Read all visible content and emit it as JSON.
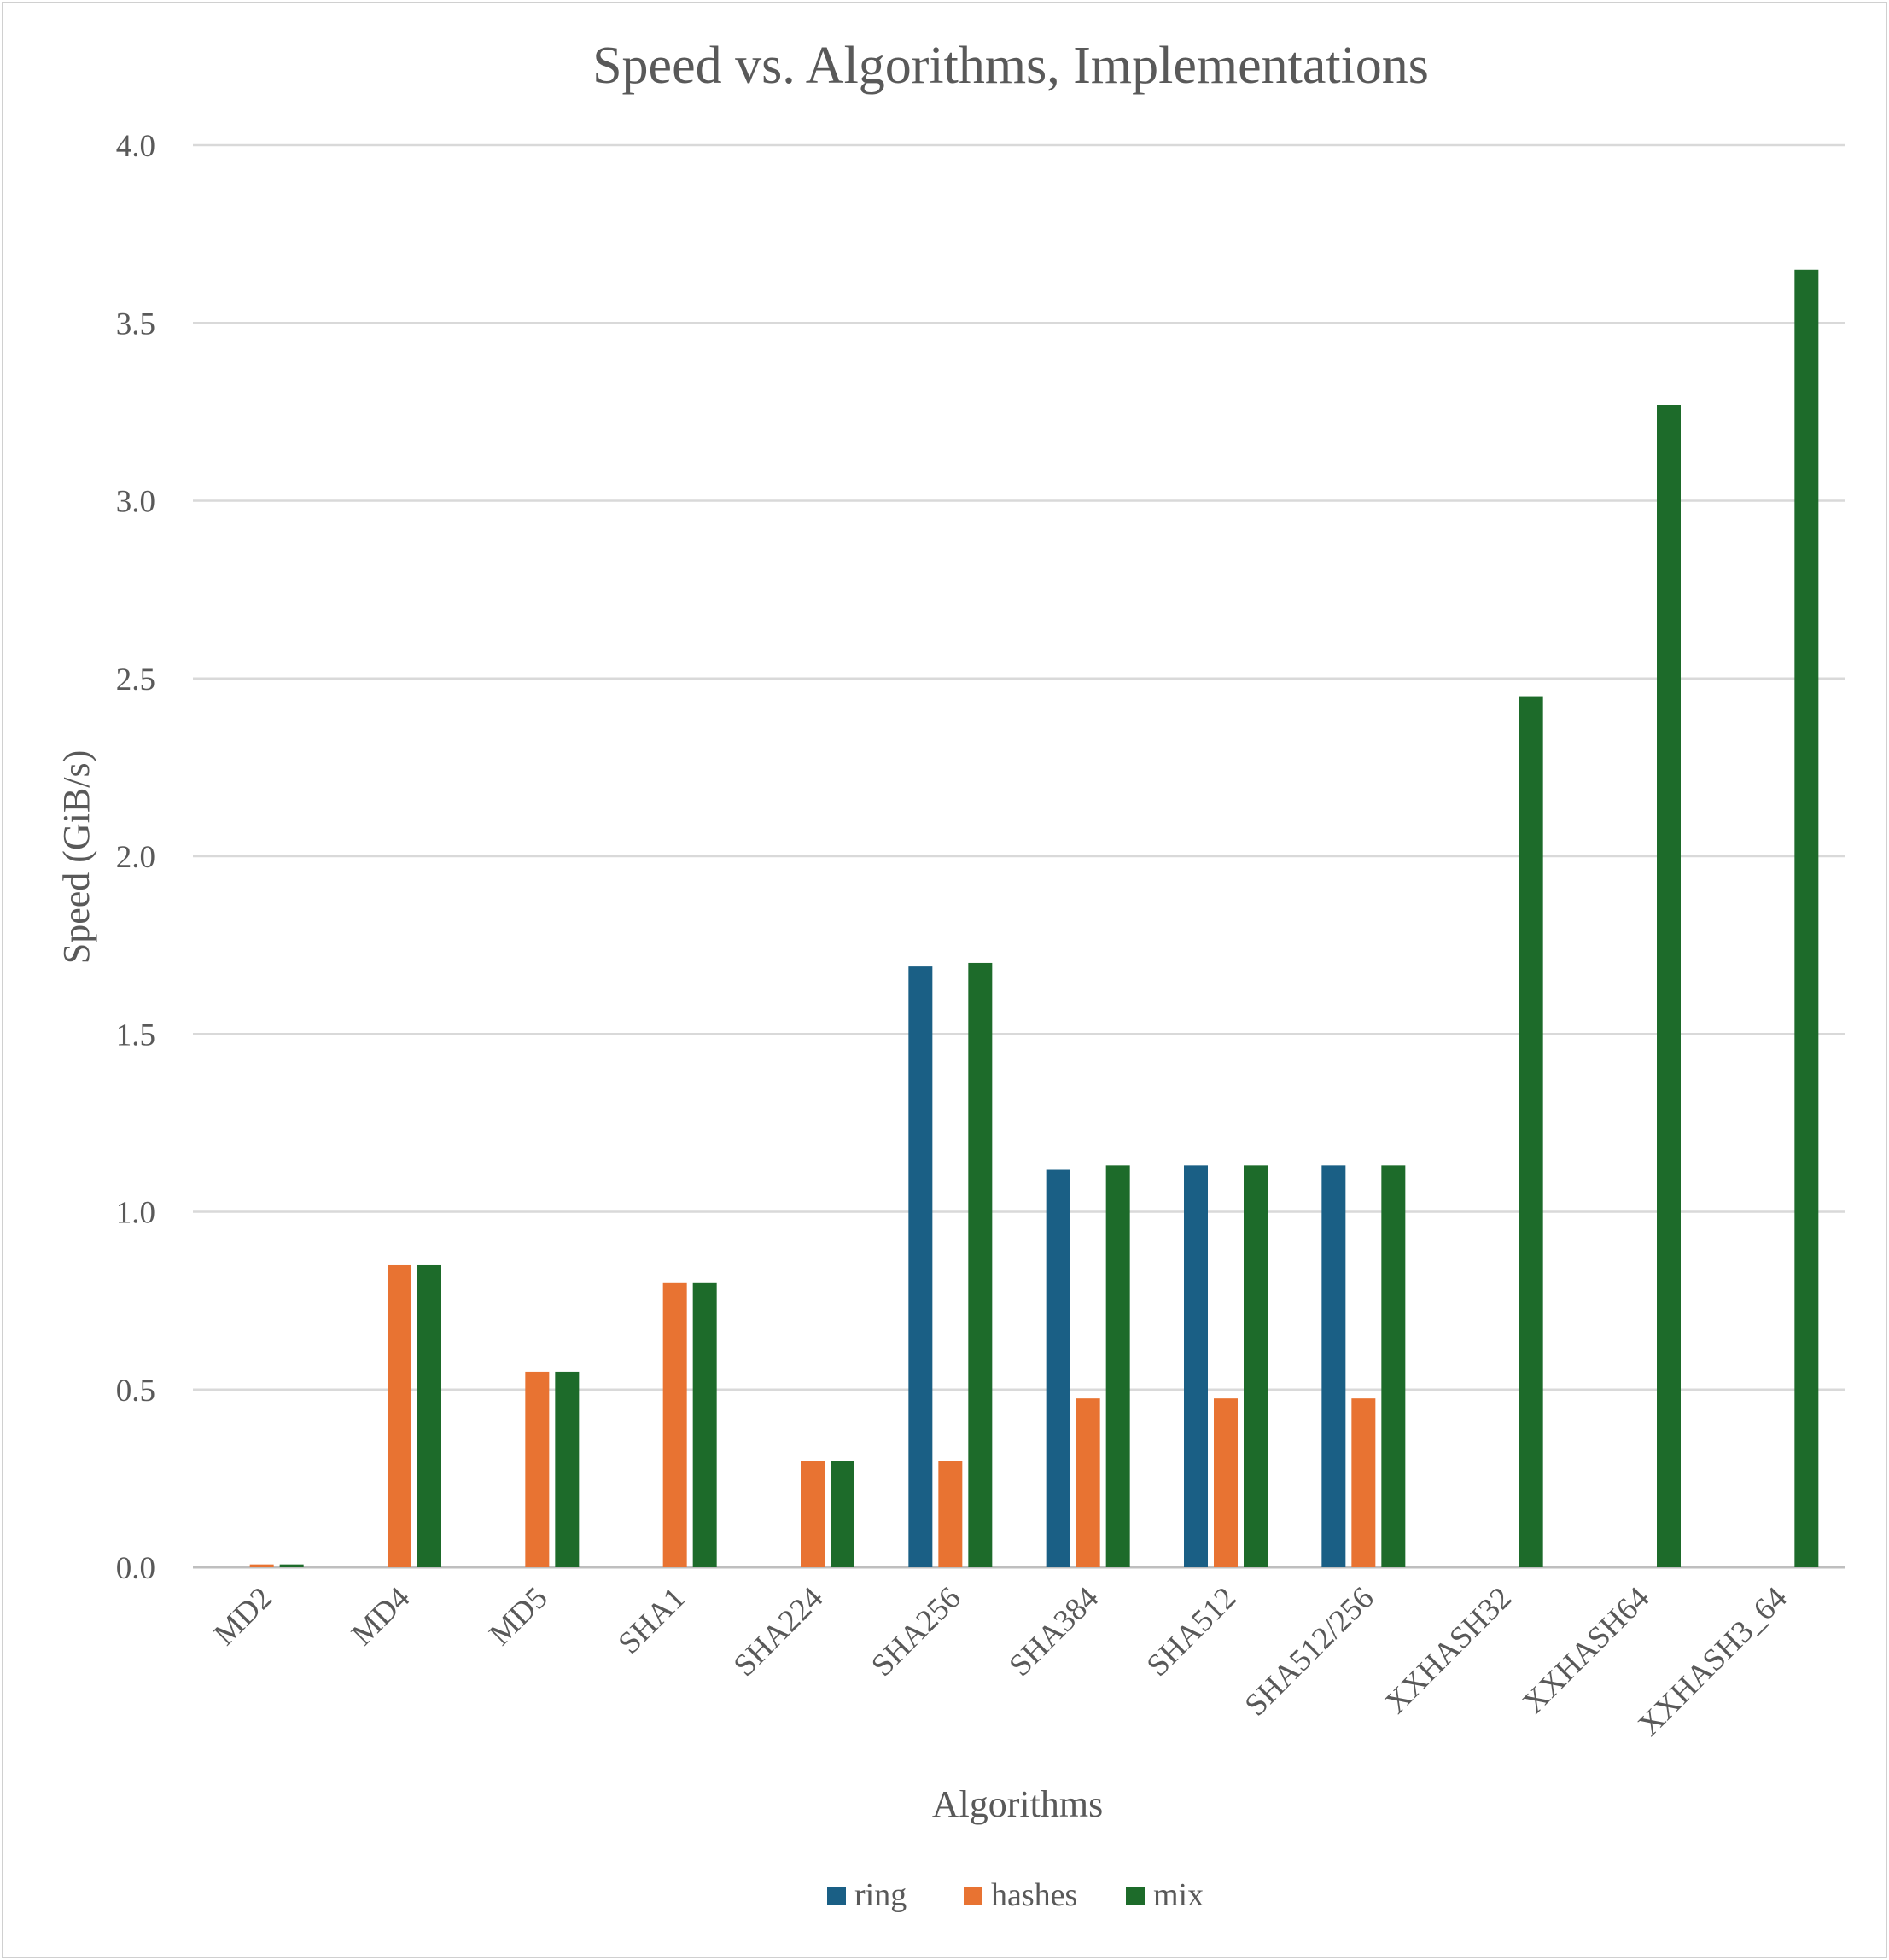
{
  "chart_data": {
    "type": "bar",
    "title": "Speed vs. Algorithms, Implementations",
    "xlabel": "Algorithms",
    "ylabel": "Speed (GiB/s)",
    "ylim": [
      0,
      4.0
    ],
    "yticks": [
      "0.0",
      "0.5",
      "1.0",
      "1.5",
      "2.0",
      "2.5",
      "3.0",
      "3.5",
      "4.0"
    ],
    "grid": "horizontal",
    "legend": "bottom",
    "categories": [
      "MD2",
      "MD4",
      "MD5",
      "SHA1",
      "SHA224",
      "SHA256",
      "SHA384",
      "SHA512",
      "SHA512/256",
      "XXHASH32",
      "XXHASH64",
      "XXHASH3_64"
    ],
    "series": [
      {
        "name": "ring",
        "color": "#1a5f85",
        "values": [
          null,
          null,
          null,
          null,
          null,
          1.69,
          1.12,
          1.13,
          1.13,
          null,
          null,
          null
        ]
      },
      {
        "name": "hashes",
        "color": "#e87332",
        "values": [
          0.008,
          0.85,
          0.55,
          0.8,
          0.3,
          0.3,
          0.475,
          0.475,
          0.475,
          null,
          null,
          null
        ]
      },
      {
        "name": "mix",
        "color": "#1d6b2a",
        "values": [
          0.008,
          0.85,
          0.55,
          0.8,
          0.3,
          1.7,
          1.13,
          1.13,
          1.13,
          2.45,
          3.27,
          3.65
        ]
      }
    ]
  }
}
